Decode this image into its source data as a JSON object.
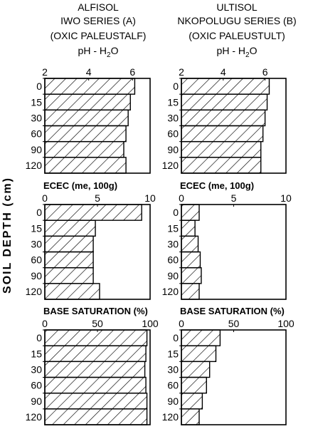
{
  "headers": [
    {
      "lines": [
        "ALFISOL",
        "IWO SERIES (A)",
        "(OXIC PALEUSTALF)"
      ],
      "ph_label": "pH - H",
      "ph_sub": "2",
      "ph_tail": "O"
    },
    {
      "lines": [
        "ULTISOL",
        "NKOPOLUGU SERIES (B)",
        "(OXIC PALEUSTULT)"
      ],
      "ph_label": "pH - H",
      "ph_sub": "2",
      "ph_tail": "O"
    }
  ],
  "y_axis_label": "SOIL   DEPTH   (cm)",
  "chart_data": [
    {
      "type": "bar",
      "orientation": "horizontal",
      "title": "",
      "soil": "ALFISOL IWO SERIES (A)",
      "categories": [
        "0",
        "15",
        "30",
        "60",
        "90",
        "120"
      ],
      "values": [
        6.1,
        5.9,
        5.8,
        5.7,
        5.6,
        5.7
      ],
      "xlim": [
        2,
        6.8
      ],
      "xticks": [
        2,
        4,
        6
      ],
      "ylabel": "SOIL DEPTH (cm)"
    },
    {
      "type": "bar",
      "orientation": "horizontal",
      "title": "",
      "soil": "ULTISOL NKOPOLUGU SERIES (B)",
      "categories": [
        "0",
        "15",
        "30",
        "60",
        "90",
        "120"
      ],
      "values": [
        6.2,
        6.1,
        6.0,
        5.9,
        5.8,
        5.8
      ],
      "xlim": [
        2,
        7
      ],
      "xticks": [
        2,
        4,
        6
      ]
    },
    {
      "type": "bar",
      "orientation": "horizontal",
      "title": "ECEC  (me, 100g)",
      "soil": "ALFISOL IWO SERIES (A)",
      "categories": [
        "0",
        "15",
        "30",
        "60",
        "90",
        "120"
      ],
      "values": [
        9.2,
        4.8,
        4.6,
        4.6,
        4.6,
        5.2
      ],
      "xlim": [
        0,
        10
      ],
      "xticks": [
        0,
        5,
        10
      ]
    },
    {
      "type": "bar",
      "orientation": "horizontal",
      "title": "ECEC  (me, 100g)",
      "soil": "ULTISOL NKOPOLUGU SERIES (B)",
      "categories": [
        "0",
        "15",
        "30",
        "60",
        "90",
        "120"
      ],
      "values": [
        1.7,
        1.3,
        1.6,
        1.8,
        1.9,
        1.7
      ],
      "xlim": [
        0,
        10
      ],
      "xticks": [
        0,
        5,
        10
      ]
    },
    {
      "type": "bar",
      "orientation": "horizontal",
      "title": "BASE SATURATION (%)",
      "soil": "ALFISOL IWO SERIES (A)",
      "categories": [
        "0",
        "15",
        "30",
        "60",
        "90",
        "120"
      ],
      "values": [
        97,
        96,
        95,
        96,
        97,
        97
      ],
      "xlim": [
        0,
        100
      ],
      "xticks": [
        0,
        50,
        100
      ]
    },
    {
      "type": "bar",
      "orientation": "horizontal",
      "title": "BASE SATURATION (%)",
      "soil": "ULTISOL NKOPOLUGU SERIES (B)",
      "categories": [
        "0",
        "15",
        "30",
        "60",
        "90",
        "120"
      ],
      "values": [
        37,
        33,
        27,
        24,
        20,
        17
      ],
      "xlim": [
        0,
        100
      ],
      "xticks": [
        0,
        50,
        100
      ]
    }
  ]
}
